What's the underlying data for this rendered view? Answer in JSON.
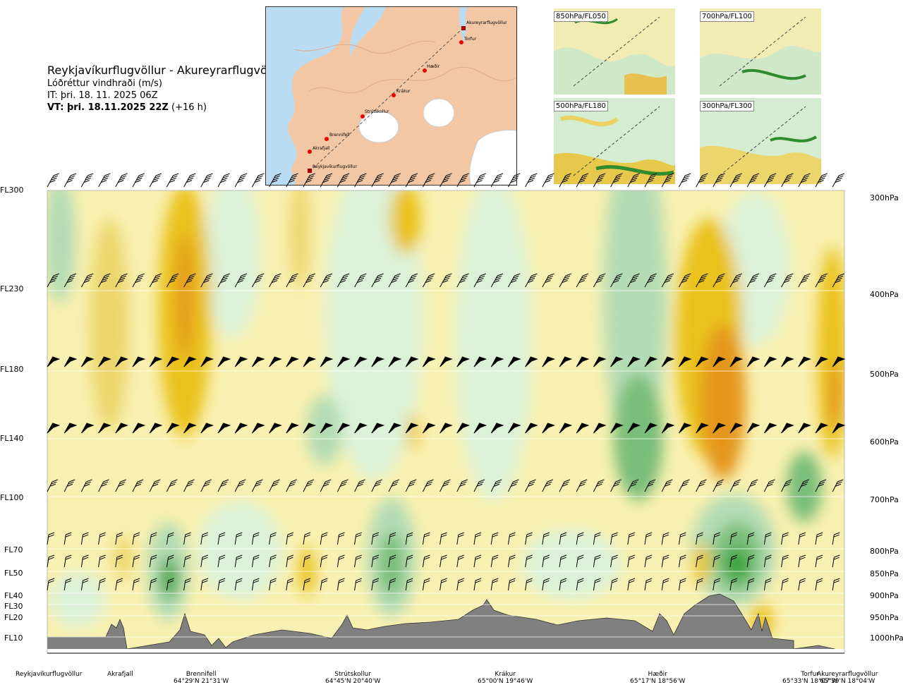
{
  "header": {
    "title": "Reykjavíkurflugvöllur - Akureyrarflugvöllur",
    "subtitle": "Lóðréttur vindhraði (m/s)",
    "it": "IT: þri. 18. 11. 2025 06Z",
    "vt_bold": "VT: þri. 18.11.2025 22Z",
    "vt_suffix": "(+16 h)"
  },
  "minimap": {
    "points": [
      "Akureyrarflugvöllur",
      "Torfur",
      "Hæðir",
      "Krákur",
      "Strútskollur",
      "Brennifell",
      "Akrafjall",
      "Reykjavíkurflugvöllur"
    ]
  },
  "panels": [
    "850hPa/FL050",
    "700hPa/FL100",
    "500hPa/FL180",
    "300hPa/FL300"
  ],
  "levels": [
    {
      "fl": "FL300",
      "hpa": "300hPa"
    },
    {
      "fl": "FL230",
      "hpa": "400hPa"
    },
    {
      "fl": "FL180",
      "hpa": "500hPa"
    },
    {
      "fl": "FL140",
      "hpa": "600hPa"
    },
    {
      "fl": "FL100",
      "hpa": "700hPa"
    },
    {
      "fl": "FL70",
      "hpa": "800hPa"
    },
    {
      "fl": "FL50",
      "hpa": "850hPa"
    },
    {
      "fl": "FL40",
      "hpa": "900hPa"
    },
    {
      "fl": "FL30",
      "hpa": ""
    },
    {
      "fl": "FL20",
      "hpa": "950hPa"
    },
    {
      "fl": "FL10",
      "hpa": "1000hPa"
    }
  ],
  "locations": [
    {
      "name": "Reykjavíkurflugvöllur",
      "coord": ""
    },
    {
      "name": "Akrafjall",
      "coord": ""
    },
    {
      "name": "Brennifell",
      "coord": "64°29'N 21°31'W"
    },
    {
      "name": "Strútskollur",
      "coord": "64°45'N 20°40'W"
    },
    {
      "name": "Krákur",
      "coord": "65°00'N 19°46'W"
    },
    {
      "name": "Hæðir",
      "coord": "65°17'N 18°56'W"
    },
    {
      "name": "Torfur",
      "coord": "65°33'N 18°07'W"
    },
    {
      "name": "Akureyrarflugvöllur",
      "coord": "65°39'N 18°04'W"
    }
  ],
  "colors": {
    "neg_light": "#dcf2d8",
    "neg_mid": "#b4dcb4",
    "neg_dark": "#78be78",
    "neg_strong": "#32a032",
    "pos_light": "#f8f0b0",
    "pos_mid": "#f0dc6a",
    "pos_dark": "#eac21a",
    "pos_strong": "#e4961e",
    "terrain": "#808080"
  },
  "chart_data": {
    "type": "heatmap",
    "title": "Lóðréttur vindhraði (m/s)",
    "xlabel": "",
    "ylabel": "",
    "y_levels_hpa": [
      300,
      400,
      500,
      600,
      700,
      800,
      850,
      900,
      950,
      1000
    ],
    "x_waypoints": [
      "Reykjavíkurflugvöllur",
      "Akrafjall",
      "Brennifell",
      "Strútskollur",
      "Krákur",
      "Hæðir",
      "Torfur",
      "Akureyrarflugvöllur"
    ],
    "note_sign": "yellow/orange = positive (upward), green = negative (downward)"
  }
}
